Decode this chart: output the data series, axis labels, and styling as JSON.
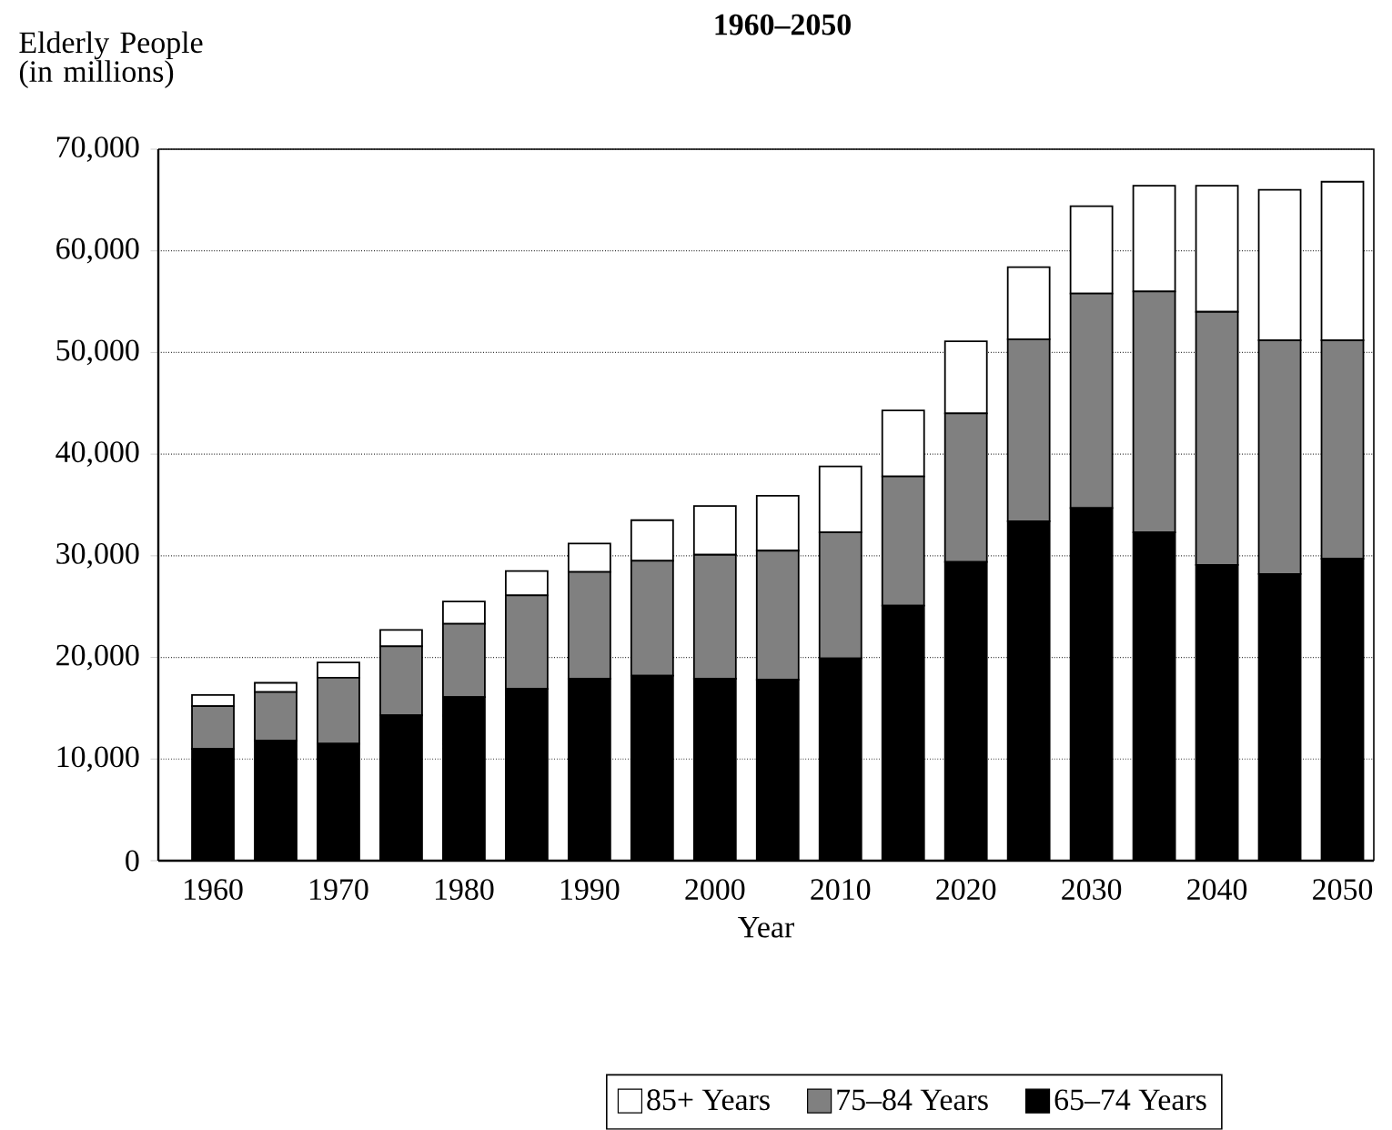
{
  "chart_data": {
    "type": "bar",
    "stacked": true,
    "title": "1960–2050",
    "ylabel": "Elderly People (in millions)",
    "xlabel": "Year",
    "categories": [
      "1960",
      null,
      "1970",
      null,
      "1980",
      null,
      "1990",
      null,
      "2000",
      null,
      "2010",
      null,
      "2020",
      null,
      "2030",
      null,
      "2040",
      null,
      "2050"
    ],
    "series": [
      {
        "name": "65–74 Years",
        "color": "#000000",
        "values": [
          11000,
          11800,
          11500,
          14300,
          16100,
          16900,
          17900,
          18200,
          17900,
          17800,
          19900,
          25100,
          29400,
          33400,
          34700,
          32300,
          29100,
          28200,
          29700
        ]
      },
      {
        "name": "75–84 Years",
        "color": "#808080",
        "values": [
          4200,
          4800,
          6500,
          6800,
          7200,
          9200,
          10500,
          11300,
          12200,
          12700,
          12400,
          12700,
          14600,
          17900,
          21100,
          23700,
          24900,
          23000,
          21500
        ]
      },
      {
        "name": "85+ Years",
        "color": "#ffffff",
        "values": [
          1100,
          900,
          1500,
          1600,
          2200,
          2400,
          2800,
          4000,
          4800,
          5400,
          6500,
          6500,
          7100,
          7100,
          8600,
          10400,
          12400,
          14800,
          15600
        ]
      }
    ],
    "ylim": [
      0,
      70000
    ],
    "yticks": [
      0,
      {
        "value": 10000,
        "label": "10,000"
      },
      {
        "value": 20000,
        "label": "20,000"
      },
      {
        "value": 30000,
        "label": "30,000"
      },
      {
        "value": 40000,
        "label": "40,000"
      },
      {
        "value": 50000,
        "label": "50,000"
      },
      {
        "value": 60000,
        "label": "60,000"
      },
      {
        "value": 70000,
        "label": "70,000"
      }
    ],
    "grid": "y",
    "legend": "bottom"
  }
}
